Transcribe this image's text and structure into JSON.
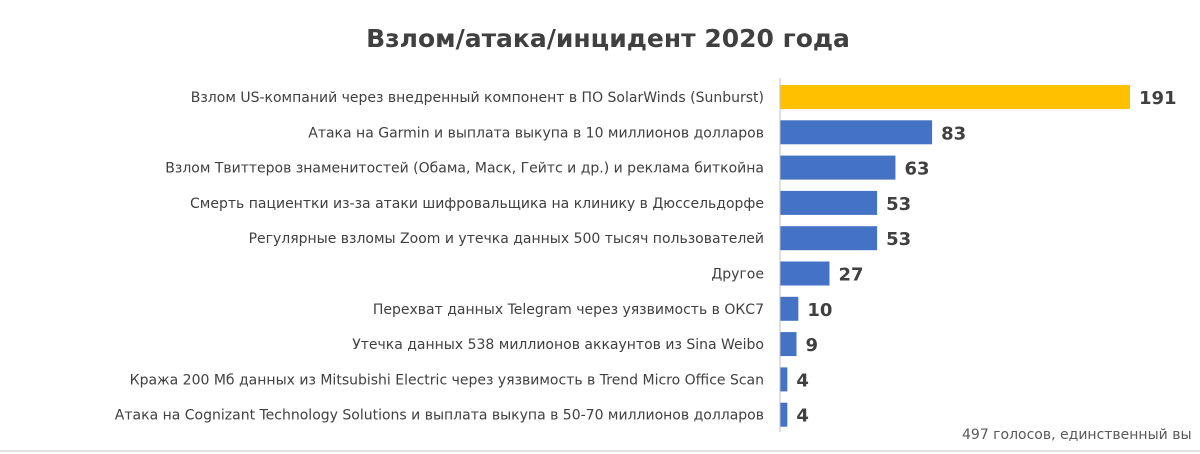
{
  "chart_data": {
    "type": "bar",
    "orientation": "horizontal",
    "title": "Взлом/атака/инцидент 2020 года",
    "xlabel": "",
    "ylabel": "",
    "categories": [
      "Взлом US-компаний через внедренный компонент в ПО SolarWinds (Sunburst)",
      "Атака на Garmin и выплата выкупа в 10 миллионов долларов",
      "Взлом Твиттеров знаменитостей (Обама, Маск, Гейтс и др.) и реклама биткойна",
      "Смерть пациентки из-за атаки шифровальщика на клинику в Дюссельдорфе",
      "Регулярные взломы Zoom и утечка данных 500 тысяч пользователей",
      "Другое",
      "Перехват данных Telegram через уязвимость в ОКС7",
      "Утечка данных 538 миллионов аккаунтов из Sina Weibo",
      "Кража 200 Мб данных из Mitsubishi Electric через уязвимость в Trend Micro Office Scan",
      "Атака на Cognizant Technology Solutions и выплата выкупа в 50-70 миллионов долларов"
    ],
    "values": [
      191,
      83,
      63,
      53,
      53,
      27,
      10,
      9,
      4,
      4
    ],
    "highlight_index": 0,
    "colors": {
      "default": "#4472C4",
      "highlight": "#FFC000",
      "axis": "#BFBFBF",
      "frame": "#D9D9D9"
    },
    "xlim": [
      0,
      191
    ],
    "grid": false,
    "legend": "none",
    "footnote": "497 голосов, единственный вы"
  }
}
